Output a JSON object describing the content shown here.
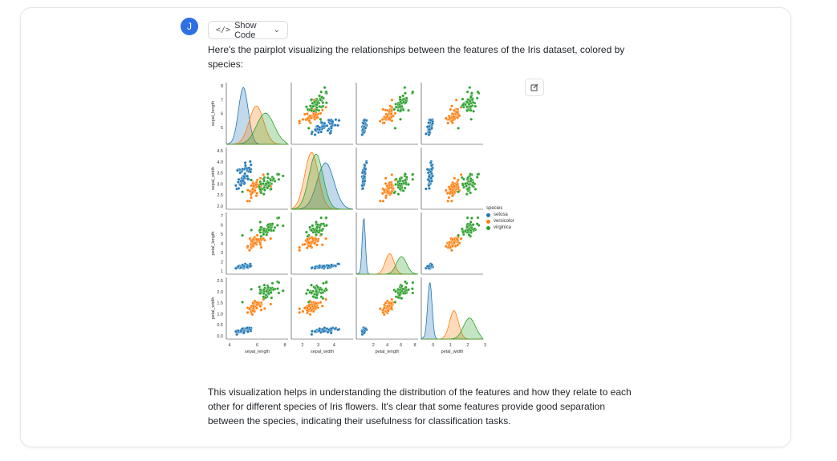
{
  "user": {
    "avatar_letter": "J"
  },
  "toolbar": {
    "show_code_label": "Show Code",
    "code_icon": "</>",
    "chevron": "⌄"
  },
  "message": {
    "intro": "Here's the pairplot visualizing the relationships between the features of the Iris dataset, colored by species:",
    "outro": "This visualization helps in understanding the distribution of the features and how they relate to each other for different species of Iris flowers. It's clear that some features provide good separation between the species, indicating their usefulness for classification tasks."
  },
  "chart_data": {
    "type": "scatter",
    "variables": [
      "sepal_length",
      "sepal_width",
      "petal_length",
      "petal_width"
    ],
    "ranges": {
      "sepal_length": [
        4,
        8
      ],
      "sepal_width": [
        2,
        4.5
      ],
      "petal_length": [
        1,
        7
      ],
      "petal_width": [
        0,
        2.5
      ]
    },
    "ticks": {
      "sepal_length": [
        "4",
        "6",
        "8"
      ],
      "sepal_width": [
        "2",
        "3",
        "4"
      ],
      "petal_length": [
        "2",
        "4",
        "6",
        "8"
      ],
      "petal_width": [
        "0",
        "1",
        "2",
        "3"
      ]
    },
    "ytick_labels": {
      "sepal_length": [
        "5",
        "6",
        "7",
        "8"
      ],
      "sepal_width": [
        "2.0",
        "2.5",
        "3.0",
        "3.5",
        "4.0",
        "4.5"
      ],
      "petal_length": [
        "1",
        "2",
        "3",
        "4",
        "5",
        "6",
        "7"
      ],
      "petal_width": [
        "0.0",
        "0.5",
        "1.0",
        "1.5",
        "2.0",
        "2.5"
      ]
    },
    "legend_title": "species",
    "legend_position": "right",
    "series": [
      {
        "name": "setosa",
        "color": "#1f77b4",
        "means": [
          5.0,
          3.4,
          1.46,
          0.24
        ],
        "sds": [
          0.35,
          0.38,
          0.17,
          0.1
        ]
      },
      {
        "name": "versicolor",
        "color": "#ff7f0e",
        "means": [
          5.94,
          2.77,
          4.26,
          1.33
        ],
        "sds": [
          0.52,
          0.31,
          0.47,
          0.2
        ]
      },
      {
        "name": "virginica",
        "color": "#2ca02c",
        "means": [
          6.59,
          2.97,
          5.55,
          2.03
        ],
        "sds": [
          0.64,
          0.32,
          0.55,
          0.27
        ]
      }
    ],
    "points_per_series": 50
  }
}
